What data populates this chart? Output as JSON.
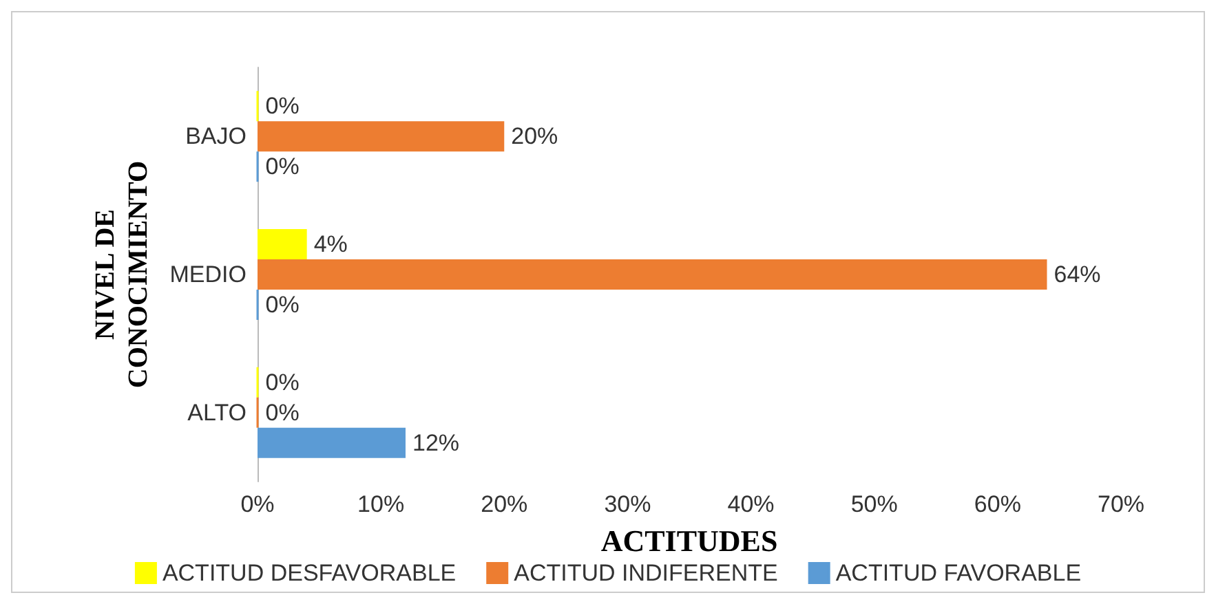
{
  "chart_data": {
    "type": "bar",
    "orientation": "horizontal",
    "categories": [
      "BAJO",
      "MEDIO",
      "ALTO"
    ],
    "series": [
      {
        "name": "ACTITUD DESFAVORABLE",
        "color": "#ffff00",
        "values": [
          0,
          4,
          0
        ],
        "value_labels": [
          "0%",
          "4%",
          "0%"
        ]
      },
      {
        "name": "ACTITUD INDIFERENTE",
        "color": "#ed7d31",
        "values": [
          20,
          64,
          0
        ],
        "value_labels": [
          "20%",
          "64%",
          "0%"
        ]
      },
      {
        "name": "ACTITUD FAVORABLE",
        "color": "#5b9bd5",
        "values": [
          0,
          0,
          12
        ],
        "value_labels": [
          "0%",
          "0%",
          "12%"
        ]
      }
    ],
    "xlim": [
      0,
      70
    ],
    "xticks": [
      {
        "value": 0,
        "label": "0%"
      },
      {
        "value": 10,
        "label": "10%"
      },
      {
        "value": 20,
        "label": "20%"
      },
      {
        "value": 30,
        "label": "30%"
      },
      {
        "value": 40,
        "label": "40%"
      },
      {
        "value": 50,
        "label": "50%"
      },
      {
        "value": 60,
        "label": "60%"
      },
      {
        "value": 70,
        "label": "70%"
      }
    ],
    "xlabel": "ACTITUDES",
    "ylabel": "NIVEL DE\nCONOCIMIENTO",
    "legend": "bottom",
    "grid": false
  }
}
